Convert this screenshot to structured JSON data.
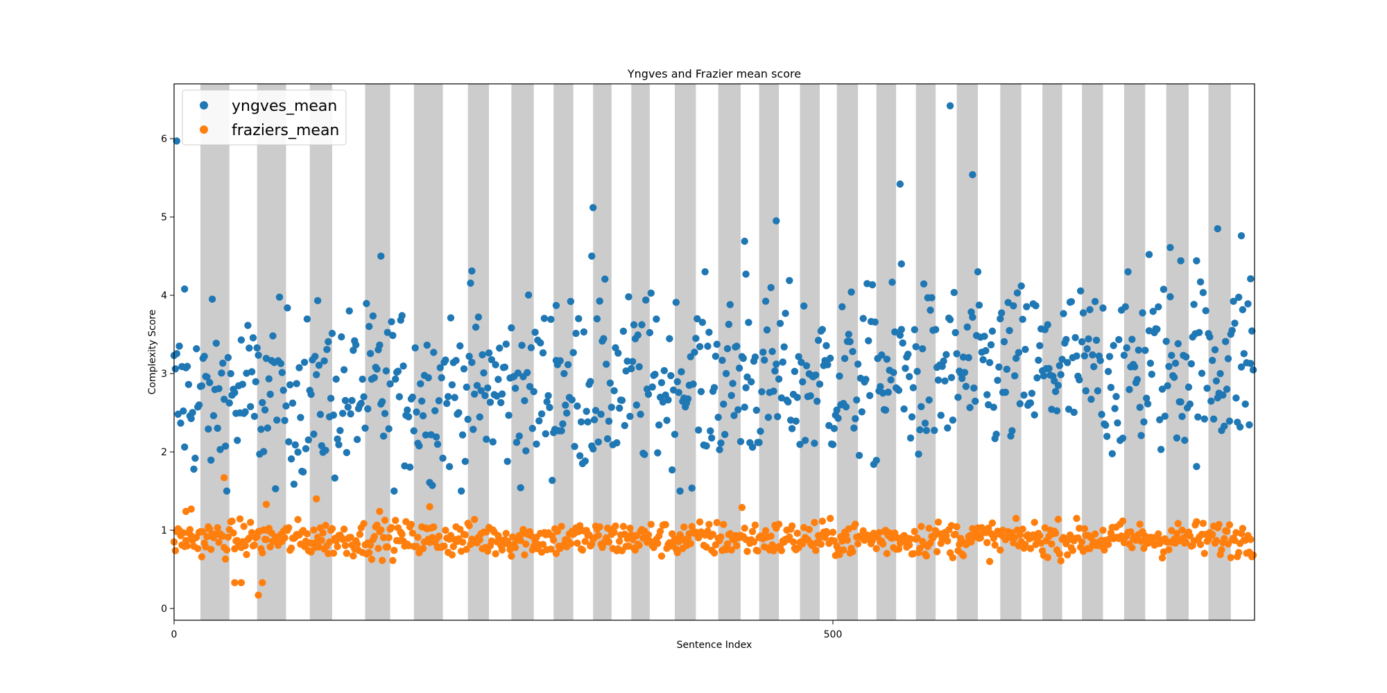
{
  "chart_data": {
    "type": "scatter",
    "title": "Yngves and Frazier mean score",
    "xlabel": "Sentence Index",
    "ylabel": "Complexity Score",
    "xlim": [
      0,
      820
    ],
    "ylim": [
      -0.15,
      6.7
    ],
    "x_ticks": [
      0,
      500
    ],
    "y_ticks": [
      0,
      1,
      2,
      3,
      4,
      5,
      6
    ],
    "grid": false,
    "legend_position": "top-left",
    "shaded_bands": [
      [
        20,
        42
      ],
      [
        63,
        85
      ],
      [
        103,
        120
      ],
      [
        145,
        164
      ],
      [
        182,
        204
      ],
      [
        223,
        239
      ],
      [
        256,
        273
      ],
      [
        288,
        303
      ],
      [
        318,
        332
      ],
      [
        347,
        361
      ],
      [
        380,
        396
      ],
      [
        413,
        430
      ],
      [
        444,
        459
      ],
      [
        475,
        490
      ],
      [
        503,
        519
      ],
      [
        533,
        548
      ],
      [
        563,
        578
      ],
      [
        594,
        610
      ],
      [
        627,
        643
      ],
      [
        659,
        674
      ],
      [
        689,
        705
      ],
      [
        721,
        737
      ],
      [
        753,
        770
      ],
      [
        785,
        802
      ]
    ],
    "outliers_yngves": [
      [
        2,
        5.97
      ],
      [
        8,
        4.08
      ],
      [
        157,
        4.5
      ],
      [
        226,
        4.31
      ],
      [
        290,
        3.87
      ],
      [
        317,
        4.5
      ],
      [
        318,
        5.12
      ],
      [
        434,
        4.27
      ],
      [
        433,
        4.69
      ],
      [
        457,
        4.95
      ],
      [
        551,
        5.42
      ],
      [
        552,
        4.4
      ],
      [
        589,
        6.42
      ],
      [
        606,
        5.54
      ],
      [
        756,
        4.61
      ],
      [
        740,
        4.52
      ],
      [
        792,
        4.85
      ],
      [
        764,
        4.44
      ],
      [
        776,
        4.44
      ],
      [
        810,
        4.76
      ],
      [
        817,
        4.21
      ]
    ],
    "outliers_fraziers": [
      [
        46,
        0.33
      ],
      [
        51,
        0.33
      ],
      [
        64,
        0.17
      ],
      [
        67,
        0.33
      ],
      [
        70,
        1.33
      ],
      [
        38,
        1.67
      ],
      [
        108,
        1.4
      ],
      [
        431,
        1.29
      ],
      [
        9,
        1.24
      ],
      [
        13,
        1.27
      ],
      [
        156,
        1.24
      ],
      [
        194,
        1.3
      ]
    ],
    "series": [
      {
        "name": "yngves_mean",
        "color": "#1f77b4",
        "count": 820,
        "center": 2.85,
        "spread": 0.55
      },
      {
        "name": "fraziers_mean",
        "color": "#ff7f0e",
        "count": 820,
        "center": 0.89,
        "spread": 0.11
      }
    ]
  }
}
